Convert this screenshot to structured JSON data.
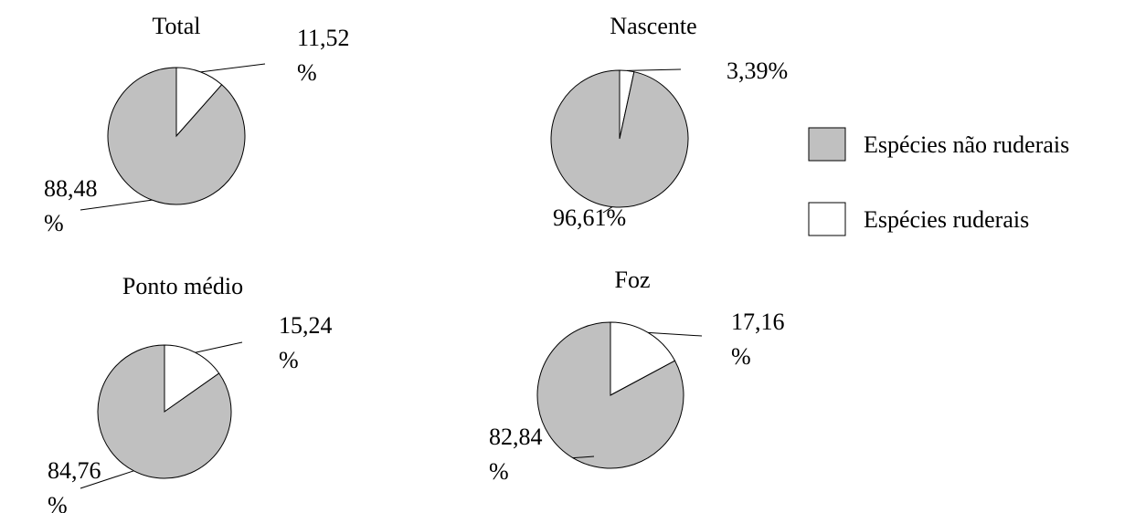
{
  "chart_data": [
    {
      "type": "pie",
      "title": "Total",
      "values": [
        88.48,
        11.52
      ],
      "value_labels": [
        "88,48\n%",
        "11,52\n%"
      ]
    },
    {
      "type": "pie",
      "title": "Nascente",
      "values": [
        96.61,
        3.39
      ],
      "value_labels": [
        "96,61%",
        "3,39%"
      ]
    },
    {
      "type": "pie",
      "title": "Ponto médio",
      "values": [
        84.76,
        15.24
      ],
      "value_labels": [
        "84,76\n%",
        "15,24\n%"
      ]
    },
    {
      "type": "pie",
      "title": "Foz",
      "values": [
        82.84,
        17.16
      ],
      "value_labels": [
        "82,84\n%",
        "17,16\n%"
      ]
    }
  ],
  "legend": {
    "labels": [
      "Espécies não ruderais",
      "Espécies ruderais"
    ],
    "colors": [
      "#c0c0c0",
      "#ffffff"
    ]
  }
}
